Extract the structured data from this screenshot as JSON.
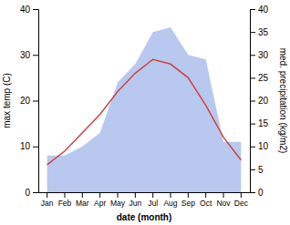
{
  "chart_data": {
    "type": "line",
    "xlabel": "date (month)",
    "ylabel": "max temp (C)",
    "y2label": "med. precipitation (kg/m2)",
    "categories": [
      "Jan",
      "Feb",
      "Mar",
      "Apr",
      "May",
      "Jun",
      "Jul",
      "Aug",
      "Sep",
      "Oct",
      "Nov",
      "Dec"
    ],
    "series": [
      {
        "type": "area",
        "axis": "y2",
        "color": "#b8c8ee",
        "values": [
          8,
          8,
          10,
          13,
          24,
          28,
          35,
          36,
          30,
          29,
          11,
          11
        ]
      },
      {
        "type": "line",
        "color": "#cc4444",
        "values": [
          6,
          9,
          13,
          17,
          22,
          26,
          29,
          28,
          25,
          19,
          12,
          7
        ]
      }
    ],
    "ylim": [
      0,
      40
    ],
    "yticks": [
      0,
      10,
      20,
      30,
      40
    ],
    "y2lim": [
      0,
      40
    ],
    "y2ticks": [
      0,
      5,
      10,
      15,
      20,
      25,
      30,
      35,
      40
    ],
    "grid": false
  }
}
